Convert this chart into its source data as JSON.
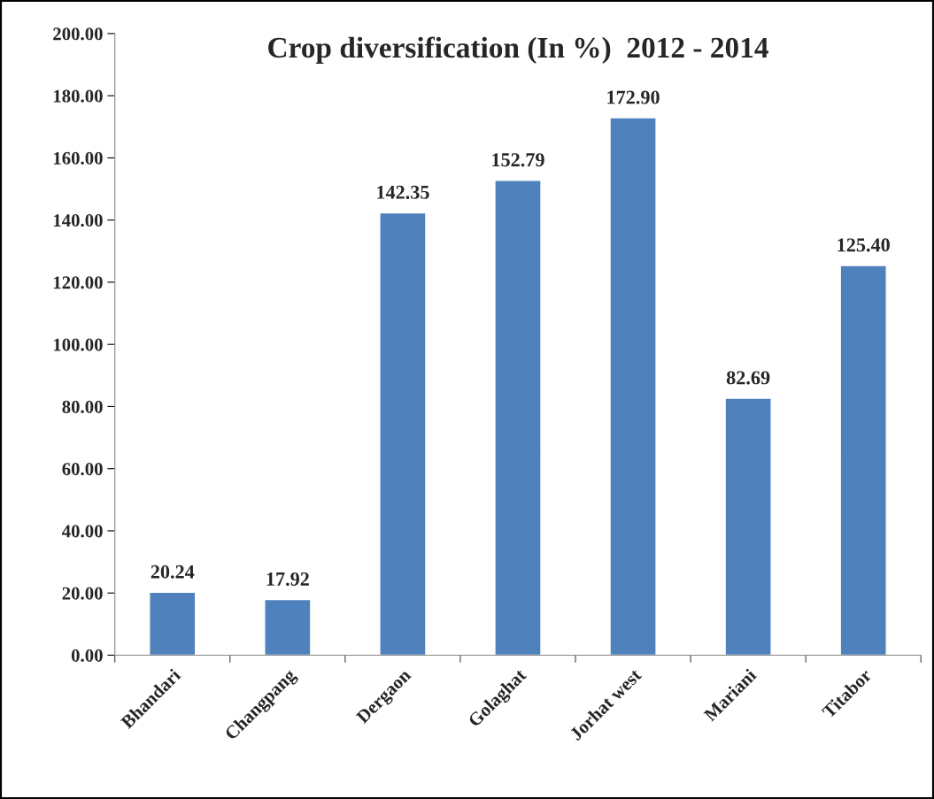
{
  "chart_data": {
    "type": "bar",
    "title": "Crop diversification (In %)  2012 - 2014",
    "categories": [
      "Bhandari",
      "Changpang",
      "Dergaon",
      "Golaghat",
      "Jorhat west",
      "Mariani",
      "Titabor"
    ],
    "values": [
      20.24,
      17.92,
      142.35,
      152.79,
      172.9,
      82.69,
      125.4
    ],
    "value_labels": [
      "20.24",
      "17.92",
      "142.35",
      "152.79",
      "172.90",
      "82.69",
      "125.40"
    ],
    "color": "#4f81bd",
    "ylim": [
      0,
      200
    ],
    "yticks": [
      {
        "value": 0,
        "label": "0.00"
      },
      {
        "value": 20,
        "label": "20.00"
      },
      {
        "value": 40,
        "label": "40.00"
      },
      {
        "value": 60,
        "label": "60.00"
      },
      {
        "value": 80,
        "label": "80.00"
      },
      {
        "value": 100,
        "label": "100.00"
      },
      {
        "value": 120,
        "label": "120.00"
      },
      {
        "value": 140,
        "label": "140.00"
      },
      {
        "value": 160,
        "label": "160.00"
      },
      {
        "value": 180,
        "label": "180.00"
      },
      {
        "value": 200,
        "label": "200.00"
      }
    ],
    "grid": false,
    "legend": false
  }
}
